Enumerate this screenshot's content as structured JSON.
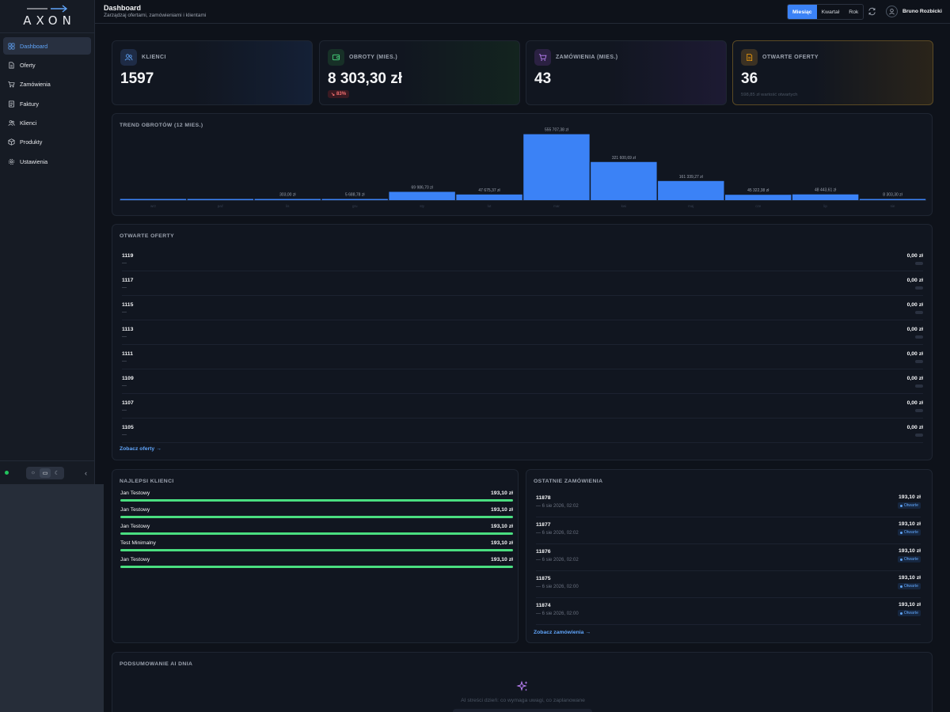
{
  "app": {
    "logo_text": "AXON"
  },
  "header": {
    "title": "Dashboard",
    "subtitle": "Zarządzaj ofertami, zamówieniami i klientami",
    "periods": [
      "Miesiąc",
      "Kwartał",
      "Rok"
    ],
    "active_period": "Miesiąc",
    "user_name": "Bruno Rozbicki"
  },
  "sidebar": {
    "items": [
      {
        "label": "Dashboard",
        "icon": "grid-icon",
        "active": true
      },
      {
        "label": "Oferty",
        "icon": "document-icon"
      },
      {
        "label": "Zamówienia",
        "icon": "cart-icon"
      },
      {
        "label": "Faktury",
        "icon": "invoice-icon"
      },
      {
        "label": "Klienci",
        "icon": "users-icon"
      },
      {
        "label": "Produkty",
        "icon": "box-icon"
      },
      {
        "label": "Ustawienia",
        "icon": "gear-icon"
      }
    ]
  },
  "kpis": [
    {
      "label": "KLIENCI",
      "value": "1597",
      "accent": "#60a5fa"
    },
    {
      "label": "OBROTY (MIES.)",
      "value": "8 303,30 zł",
      "change": "83%",
      "accent": "#4ade80"
    },
    {
      "label": "ZAMÓWIENIA (MIES.)",
      "value": "43",
      "accent": "#c084fc"
    },
    {
      "label": "OTWARTE OFERTY",
      "value": "36",
      "note": "598,85 zł wartość otwartych",
      "accent": "#f59e0b"
    }
  ],
  "trend": {
    "title": "TREND OBROTÓW (12 MIES.)",
    "chart_data": {
      "type": "bar",
      "title": "TREND OBROTÓW (12 MIES.)",
      "categories": [
        "wrz",
        "paź",
        "lis",
        "gru",
        "sty",
        "lut",
        "mar",
        "kwi",
        "maj",
        "cze",
        "lip",
        "sie"
      ],
      "values": [
        1200,
        1200,
        303.0,
        5688.78,
        69986.7,
        47675.37,
        555707.38,
        321600.69,
        161339.27,
        45322.38,
        48443.61,
        8303.3
      ],
      "data_labels": [
        "",
        "",
        "303,00 zł",
        "5 688,78 zł",
        "69 986,70 zł",
        "47 675,37 zł",
        "555 707,38 zł",
        "321 600,69 zł",
        "161 339,27 zł",
        "45 322,38 zł",
        "48 443,61 zł",
        "8 303,30 zł"
      ],
      "ylim": [
        0,
        560000
      ],
      "bar_color": "#3b82f6"
    }
  },
  "offers": {
    "title": "OTWARTE OFERTY",
    "rows": [
      {
        "id": "1119",
        "sub": "—",
        "amount": "0,00 zł"
      },
      {
        "id": "1117",
        "sub": "—",
        "amount": "0,00 zł"
      },
      {
        "id": "1115",
        "sub": "—",
        "amount": "0,00 zł"
      },
      {
        "id": "1113",
        "sub": "—",
        "amount": "0,00 zł"
      },
      {
        "id": "1111",
        "sub": "—",
        "amount": "0,00 zł"
      },
      {
        "id": "1109",
        "sub": "—",
        "amount": "0,00 zł"
      },
      {
        "id": "1107",
        "sub": "—",
        "amount": "0,00 zł"
      },
      {
        "id": "1105",
        "sub": "—",
        "amount": "0,00 zł"
      }
    ],
    "link": "Zobacz oferty →"
  },
  "top_clients": {
    "title": "NAJLEPSI KLIENCI",
    "rows": [
      {
        "name": "Jan Testowy",
        "amount": "193,10 zł",
        "share": 1.0
      },
      {
        "name": "Jan Testowy",
        "amount": "193,10 zł",
        "share": 1.0
      },
      {
        "name": "Jan Testowy",
        "amount": "193,10 zł",
        "share": 1.0
      },
      {
        "name": "Test Minimalny",
        "amount": "193,10 zł",
        "share": 1.0
      },
      {
        "name": "Jan Testowy",
        "amount": "193,10 zł",
        "share": 1.0
      }
    ]
  },
  "recent_orders": {
    "title": "OSTATNIE ZAMÓWIENIA",
    "rows": [
      {
        "id": "11878",
        "date": "—   6 sie 2026, 02:02",
        "amount": "193,10 zł",
        "status": "Otwarte"
      },
      {
        "id": "11877",
        "date": "—   6 sie 2026, 02:02",
        "amount": "193,10 zł",
        "status": "Otwarte"
      },
      {
        "id": "11876",
        "date": "—   6 sie 2026, 02:02",
        "amount": "193,10 zł",
        "status": "Otwarte"
      },
      {
        "id": "11875",
        "date": "—   6 sie 2026, 02:00",
        "amount": "193,10 zł",
        "status": "Otwarte"
      },
      {
        "id": "11874",
        "date": "—   6 sie 2026, 02:00",
        "amount": "193,10 zł",
        "status": "Otwarte"
      }
    ],
    "link": "Zobacz zamówienia →"
  },
  "ai_summary": {
    "title": "PODSUMOWANIE AI DNIA",
    "placeholder": "AI streści dzień: co wymaga uwagi, co zaplanowane",
    "icon": "sparkles-icon"
  }
}
